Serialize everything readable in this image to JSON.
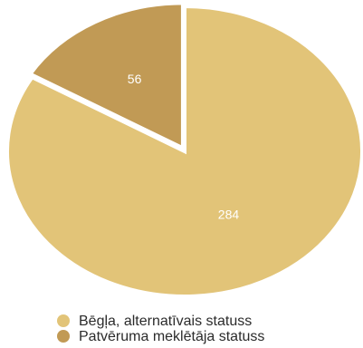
{
  "chart_data": {
    "type": "pie",
    "slices": [
      {
        "label": "Bēgļa, alternatīvais statuss",
        "value": 284,
        "value_label": "284",
        "color": "#E2C478"
      },
      {
        "label": "Patvēruma meklētāja statuss",
        "value": 56,
        "value_label": "56",
        "color": "#C19A55"
      }
    ],
    "start_angle_deg": 0,
    "exploded_slice": "Patvēruma meklētāja statuss",
    "legend_position": "bottom"
  }
}
